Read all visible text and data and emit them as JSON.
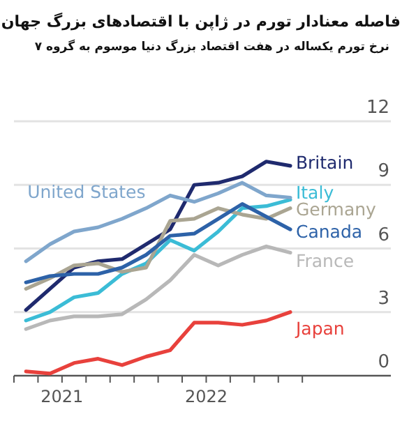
{
  "chart_data": {
    "type": "line",
    "title": "فاصله معنادار تورم در ژاپن با اقتصادهای بزرگ جهان",
    "subtitle": "نرخ تورم یکساله در هفت اقتصاد بزرگ دنیا موسوم به گروه ۷",
    "x": [
      "2020-10",
      "2020-12",
      "2021-02",
      "2021-04",
      "2021-06",
      "2021-08",
      "2021-10",
      "2021-12",
      "2022-02",
      "2022-04",
      "2022-06",
      "2022-08"
    ],
    "xlim": [
      "2020-09",
      "2023-04-12"
    ],
    "xticks": [
      {
        "value": "2020-09",
        "label": null
      },
      {
        "value": "2020-11",
        "label": null
      },
      {
        "value": "2021-01",
        "label": "2021"
      },
      {
        "value": "2021-03",
        "label": null
      },
      {
        "value": "2021-05",
        "label": null
      },
      {
        "value": "2021-07",
        "label": null
      },
      {
        "value": "2021-09",
        "label": null
      },
      {
        "value": "2021-11",
        "label": null
      },
      {
        "value": "2022-01",
        "label": "2022"
      },
      {
        "value": "2022-03",
        "label": null
      },
      {
        "value": "2022-05",
        "label": null
      },
      {
        "value": "2022-07",
        "label": null
      },
      {
        "value": "2022-09",
        "label": null
      }
    ],
    "ylim": [
      0,
      12
    ],
    "yticks": [
      0,
      3,
      6,
      9,
      12
    ],
    "grid": "y",
    "series": [
      {
        "name": "Britain",
        "color": "#1f2a6e",
        "values": [
          3.1,
          4.1,
          5.1,
          5.4,
          5.5,
          6.2,
          6.9,
          9.0,
          9.1,
          9.4,
          10.1,
          9.9
        ]
      },
      {
        "name": "Italy",
        "color": "#3bbcd6",
        "values": [
          2.6,
          3.0,
          3.7,
          3.9,
          4.8,
          5.3,
          6.4,
          5.9,
          6.8,
          7.9,
          8.0,
          8.3
        ]
      },
      {
        "name": "Germany",
        "color": "#aaa592",
        "values": [
          4.1,
          4.6,
          5.2,
          5.3,
          4.9,
          5.1,
          7.3,
          7.4,
          7.9,
          7.6,
          7.4,
          7.9
        ]
      },
      {
        "name": "Canada",
        "color": "#2d62a8",
        "values": [
          4.4,
          4.7,
          4.8,
          4.8,
          5.1,
          5.7,
          6.6,
          6.7,
          7.4,
          8.1,
          7.5,
          6.9
        ]
      },
      {
        "name": "France",
        "color": "#b8b8b8",
        "values": [
          2.2,
          2.6,
          2.8,
          2.8,
          2.9,
          3.6,
          4.5,
          5.7,
          5.2,
          5.7,
          6.1,
          5.8
        ]
      },
      {
        "name": "Japan",
        "color": "#e8413c",
        "values": [
          0.2,
          0.1,
          0.6,
          0.8,
          0.5,
          0.9,
          1.2,
          2.5,
          2.5,
          2.4,
          2.6,
          3.0
        ]
      },
      {
        "name": "United States",
        "color": "#7fa6cc",
        "values": [
          5.4,
          6.2,
          6.8,
          7.0,
          7.4,
          7.9,
          8.5,
          8.2,
          8.6,
          9.1,
          8.5,
          8.4
        ]
      }
    ]
  }
}
